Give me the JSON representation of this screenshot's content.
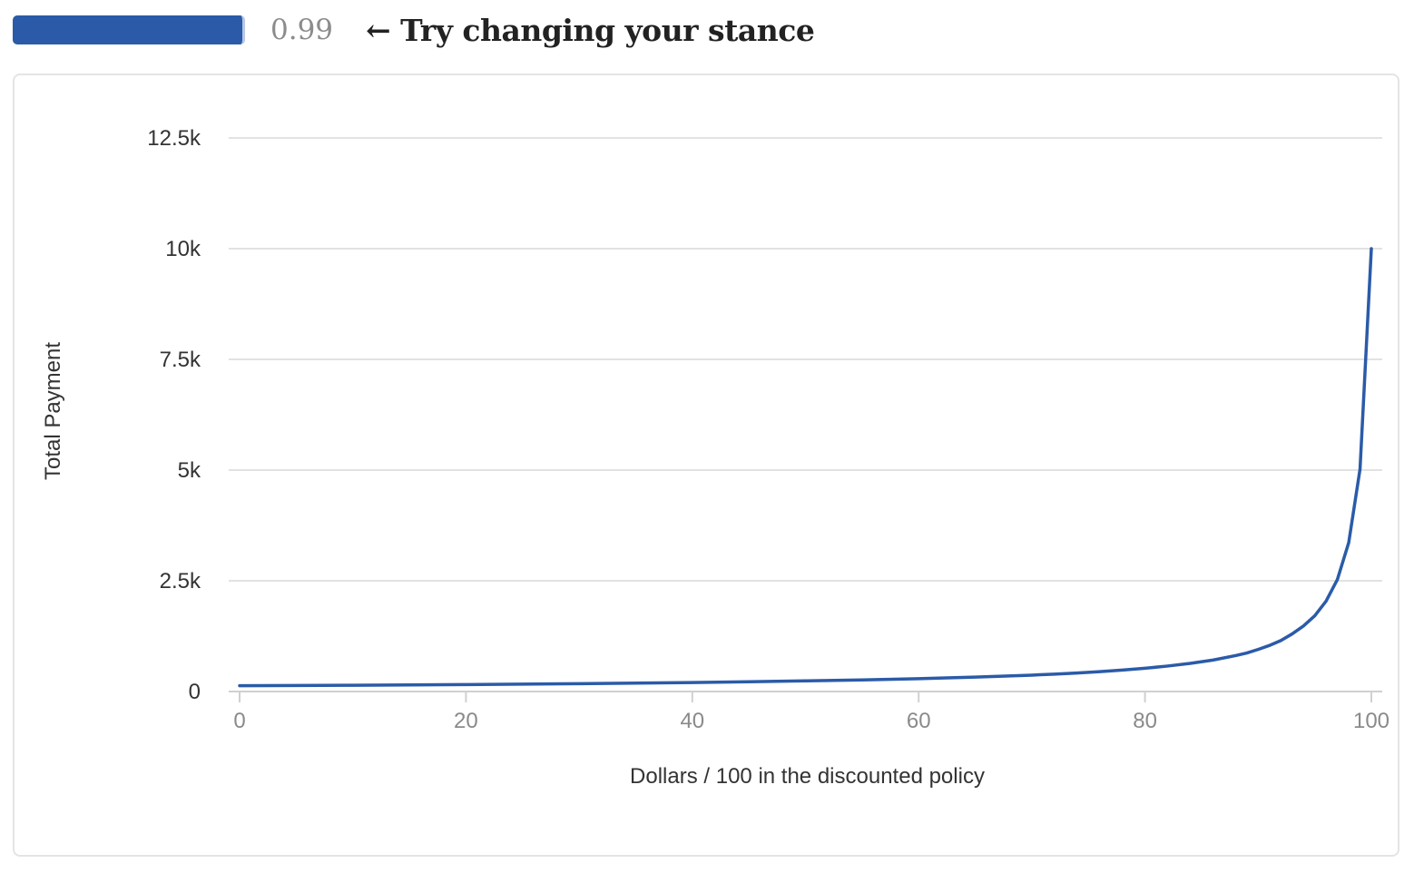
{
  "controls": {
    "slider_value": "0.99",
    "slider_fraction": 0.99,
    "hint": "← Try changing your stance"
  },
  "chart_data": {
    "type": "line",
    "title": "",
    "xlabel": "Dollars / 100 in the discounted policy",
    "ylabel": "Total Payment",
    "xlim": [
      0,
      100
    ],
    "ylim": [
      0,
      12500
    ],
    "x_ticks": [
      0,
      20,
      40,
      60,
      80,
      100
    ],
    "x_tick_labels": [
      "0",
      "20",
      "40",
      "60",
      "80",
      "100"
    ],
    "y_ticks": [
      0,
      2500,
      5000,
      7500,
      10000,
      12500
    ],
    "y_tick_labels": [
      "0",
      "2.5k",
      "5k",
      "7.5k",
      "10k",
      "12.5k"
    ],
    "grid": true,
    "legend": "none",
    "color": "#2b5ba8",
    "series": [
      {
        "x": [
          0,
          5,
          10,
          15,
          20,
          25,
          30,
          35,
          40,
          45,
          50,
          55,
          60,
          65,
          70,
          72,
          74,
          76,
          78,
          80,
          82,
          84,
          86,
          88,
          89,
          90,
          91,
          92,
          93,
          94,
          95,
          96,
          97,
          98,
          99,
          100
        ],
        "y": [
          130,
          135,
          142,
          149,
          157,
          166,
          177,
          190,
          203,
          220,
          240,
          262,
          290,
          325,
          370,
          392,
          418,
          448,
          483,
          525,
          575,
          635,
          710,
          810,
          870,
          950,
          1040,
          1150,
          1300,
          1480,
          1710,
          2040,
          2530,
          3360,
          5020,
          10000
        ]
      }
    ]
  }
}
